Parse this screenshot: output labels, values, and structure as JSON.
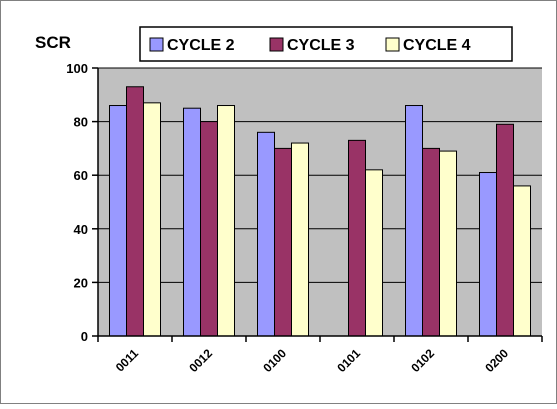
{
  "chart_data": {
    "type": "bar",
    "ylabel": "SCR",
    "ylim": [
      0,
      100
    ],
    "yticks": [
      0,
      20,
      40,
      60,
      80,
      100
    ],
    "grid": true,
    "legend_position": "top",
    "categories": [
      "0011",
      "0012",
      "0100",
      "0101",
      "0102",
      "0200"
    ],
    "series": [
      {
        "name": "CYCLE 2",
        "color": "#9999ff",
        "values": [
          86,
          85,
          76,
          null,
          86,
          61
        ]
      },
      {
        "name": "CYCLE 3",
        "color": "#993366",
        "values": [
          93,
          80,
          70,
          73,
          70,
          79
        ]
      },
      {
        "name": "CYCLE 4",
        "color": "#ffffcc",
        "values": [
          87,
          86,
          72,
          62,
          69,
          56
        ]
      }
    ],
    "plot_background": "#c0c0c0"
  }
}
